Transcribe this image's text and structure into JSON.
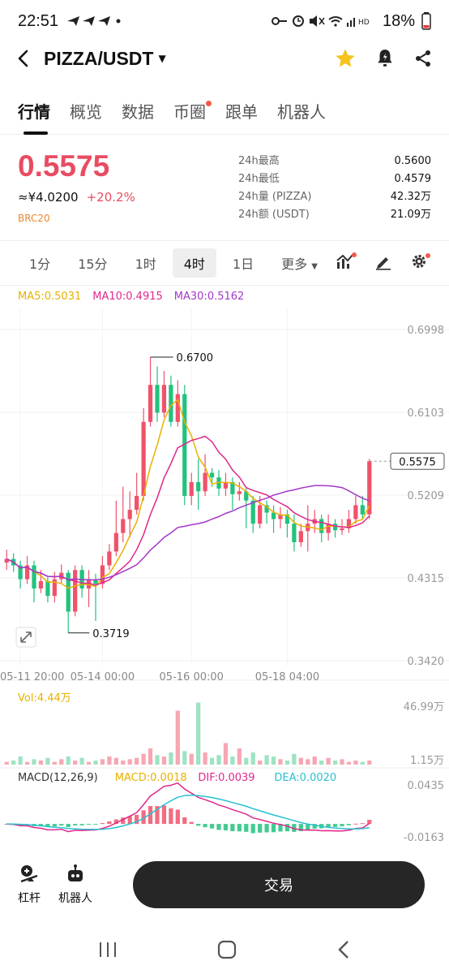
{
  "status_bar": {
    "time": "22:51",
    "battery": "18%",
    "network": "HD"
  },
  "header": {
    "title": "PIZZA/USDT"
  },
  "tabs": [
    {
      "label": "行情",
      "active": true,
      "dot": false
    },
    {
      "label": "概览",
      "active": false,
      "dot": false
    },
    {
      "label": "数据",
      "active": false,
      "dot": false
    },
    {
      "label": "币圈",
      "active": false,
      "dot": true
    },
    {
      "label": "跟单",
      "active": false,
      "dot": false
    },
    {
      "label": "机器人",
      "active": false,
      "dot": false
    }
  ],
  "ticker": {
    "last_price": "0.5575",
    "cny_price": "≈¥4.0200",
    "change": "+20.2%",
    "tag": "BRC20",
    "stats": [
      {
        "label": "24h最高",
        "value": "0.5600"
      },
      {
        "label": "24h最低",
        "value": "0.4579"
      },
      {
        "label": "24h量 (PIZZA)",
        "value": "42.32万"
      },
      {
        "label": "24h额 (USDT)",
        "value": "21.09万"
      }
    ]
  },
  "periods": [
    {
      "label": "1分",
      "active": false
    },
    {
      "label": "15分",
      "active": false
    },
    {
      "label": "1时",
      "active": false
    },
    {
      "label": "4时",
      "active": true
    },
    {
      "label": "1日",
      "active": false
    },
    {
      "label": "更多",
      "active": false
    }
  ],
  "ma_legend": {
    "ma5": "MA5:0.5031",
    "ma10": "MA10:0.4915",
    "ma30": "MA30:0.5162"
  },
  "colors": {
    "up": "#f0526a",
    "down": "#22c27e",
    "price": "#e84c61",
    "ma5": "#e8b100",
    "ma10": "#e0288c",
    "ma30": "#a438c8",
    "dea": "#27c1d0"
  },
  "chart_data": {
    "type": "candlestick",
    "price_axis": {
      "ticks": [
        "0.6998",
        "0.6103",
        "0.5209",
        "0.4315",
        "0.3420"
      ],
      "min": 0.342,
      "max": 0.6998
    },
    "time_labels": [
      "05-11 20:00",
      "05-14 00:00",
      "05-16 00:00",
      "05-18 04:00"
    ],
    "high_annotation": "0.6700",
    "low_annotation": "0.3719",
    "last_price_label": "0.5575",
    "candles": [
      {
        "o": 0.448,
        "c": 0.452,
        "h": 0.462,
        "l": 0.44
      },
      {
        "o": 0.452,
        "c": 0.445,
        "h": 0.458,
        "l": 0.438
      },
      {
        "o": 0.445,
        "c": 0.43,
        "h": 0.45,
        "l": 0.42
      },
      {
        "o": 0.43,
        "c": 0.445,
        "h": 0.455,
        "l": 0.425
      },
      {
        "o": 0.445,
        "c": 0.42,
        "h": 0.45,
        "l": 0.405
      },
      {
        "o": 0.42,
        "c": 0.428,
        "h": 0.44,
        "l": 0.415
      },
      {
        "o": 0.428,
        "c": 0.412,
        "h": 0.432,
        "l": 0.405
      },
      {
        "o": 0.412,
        "c": 0.43,
        "h": 0.438,
        "l": 0.405
      },
      {
        "o": 0.43,
        "c": 0.437,
        "h": 0.446,
        "l": 0.425
      },
      {
        "o": 0.437,
        "c": 0.395,
        "h": 0.44,
        "l": 0.372
      },
      {
        "o": 0.395,
        "c": 0.44,
        "h": 0.445,
        "l": 0.39
      },
      {
        "o": 0.44,
        "c": 0.42,
        "h": 0.445,
        "l": 0.41
      },
      {
        "o": 0.42,
        "c": 0.43,
        "h": 0.44,
        "l": 0.4
      },
      {
        "o": 0.43,
        "c": 0.425,
        "h": 0.436,
        "l": 0.385
      },
      {
        "o": 0.425,
        "c": 0.445,
        "h": 0.455,
        "l": 0.42
      },
      {
        "o": 0.445,
        "c": 0.46,
        "h": 0.468,
        "l": 0.44
      },
      {
        "o": 0.46,
        "c": 0.48,
        "h": 0.515,
        "l": 0.455
      },
      {
        "o": 0.48,
        "c": 0.495,
        "h": 0.53,
        "l": 0.47
      },
      {
        "o": 0.495,
        "c": 0.505,
        "h": 0.525,
        "l": 0.475
      },
      {
        "o": 0.505,
        "c": 0.52,
        "h": 0.545,
        "l": 0.5
      },
      {
        "o": 0.52,
        "c": 0.6,
        "h": 0.615,
        "l": 0.515
      },
      {
        "o": 0.6,
        "c": 0.64,
        "h": 0.67,
        "l": 0.595
      },
      {
        "o": 0.64,
        "c": 0.61,
        "h": 0.66,
        "l": 0.6
      },
      {
        "o": 0.61,
        "c": 0.64,
        "h": 0.655,
        "l": 0.605
      },
      {
        "o": 0.64,
        "c": 0.6,
        "h": 0.65,
        "l": 0.595
      },
      {
        "o": 0.6,
        "c": 0.63,
        "h": 0.645,
        "l": 0.595
      },
      {
        "o": 0.63,
        "c": 0.52,
        "h": 0.64,
        "l": 0.51
      },
      {
        "o": 0.52,
        "c": 0.535,
        "h": 0.545,
        "l": 0.51
      },
      {
        "o": 0.535,
        "c": 0.525,
        "h": 0.56,
        "l": 0.505
      },
      {
        "o": 0.525,
        "c": 0.545,
        "h": 0.565,
        "l": 0.52
      },
      {
        "o": 0.545,
        "c": 0.54,
        "h": 0.55,
        "l": 0.53
      },
      {
        "o": 0.54,
        "c": 0.528,
        "h": 0.548,
        "l": 0.52
      },
      {
        "o": 0.528,
        "c": 0.535,
        "h": 0.545,
        "l": 0.52
      },
      {
        "o": 0.535,
        "c": 0.522,
        "h": 0.54,
        "l": 0.505
      },
      {
        "o": 0.522,
        "c": 0.525,
        "h": 0.535,
        "l": 0.515
      },
      {
        "o": 0.525,
        "c": 0.515,
        "h": 0.53,
        "l": 0.485
      },
      {
        "o": 0.515,
        "c": 0.49,
        "h": 0.52,
        "l": 0.48
      },
      {
        "o": 0.49,
        "c": 0.51,
        "h": 0.52,
        "l": 0.485
      },
      {
        "o": 0.51,
        "c": 0.502,
        "h": 0.515,
        "l": 0.49
      },
      {
        "o": 0.502,
        "c": 0.495,
        "h": 0.51,
        "l": 0.48
      },
      {
        "o": 0.495,
        "c": 0.5,
        "h": 0.508,
        "l": 0.485
      },
      {
        "o": 0.5,
        "c": 0.49,
        "h": 0.505,
        "l": 0.475
      },
      {
        "o": 0.49,
        "c": 0.47,
        "h": 0.5,
        "l": 0.46
      },
      {
        "o": 0.47,
        "c": 0.482,
        "h": 0.49,
        "l": 0.465
      },
      {
        "o": 0.482,
        "c": 0.49,
        "h": 0.51,
        "l": 0.46
      },
      {
        "o": 0.49,
        "c": 0.495,
        "h": 0.505,
        "l": 0.48
      },
      {
        "o": 0.495,
        "c": 0.48,
        "h": 0.5,
        "l": 0.47
      },
      {
        "o": 0.48,
        "c": 0.49,
        "h": 0.5,
        "l": 0.472
      },
      {
        "o": 0.49,
        "c": 0.483,
        "h": 0.495,
        "l": 0.475
      },
      {
        "o": 0.483,
        "c": 0.485,
        "h": 0.495,
        "l": 0.478
      },
      {
        "o": 0.485,
        "c": 0.495,
        "h": 0.505,
        "l": 0.48
      },
      {
        "o": 0.495,
        "c": 0.51,
        "h": 0.52,
        "l": 0.49
      },
      {
        "o": 0.51,
        "c": 0.5,
        "h": 0.52,
        "l": 0.495
      },
      {
        "o": 0.5,
        "c": 0.5575,
        "h": 0.56,
        "l": 0.495
      }
    ],
    "volume": {
      "label": "Vol:4.44万",
      "ticks": [
        "46.99万",
        "1.15万"
      ],
      "max": 46.99,
      "values": [
        2,
        3,
        6,
        2,
        4,
        3,
        5,
        2,
        4,
        6,
        3,
        5,
        2,
        3,
        4,
        6,
        5,
        3,
        4,
        5,
        8,
        12,
        7,
        6,
        9,
        40,
        10,
        8,
        46,
        9,
        5,
        7,
        16,
        6,
        12,
        5,
        9,
        3,
        7,
        6,
        4,
        3,
        8,
        5,
        4,
        6,
        3,
        5,
        3,
        4,
        2,
        3,
        2,
        3
      ]
    },
    "macd": {
      "label": "MACD(12,26,9)",
      "macd_value": "MACD:0.0018",
      "dif_value": "DIF:0.0039",
      "dea_value": "DEA:0.0020",
      "ticks": [
        "0.0435",
        "-0.0163"
      ],
      "max": 0.0435,
      "min": -0.0163
    }
  },
  "bottom": {
    "leverage": "杠杆",
    "robot": "机器人",
    "trade": "交易"
  }
}
